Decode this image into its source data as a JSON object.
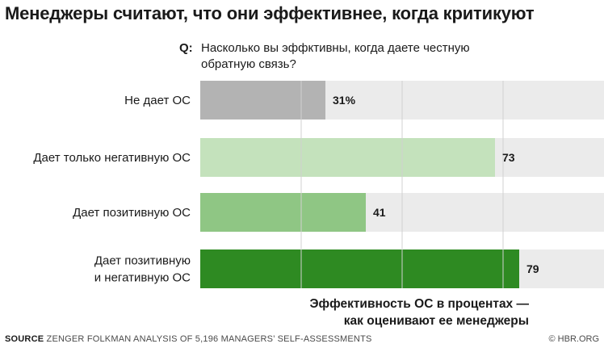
{
  "title": "Менеджеры считают, что они эффективнее, когда критикуют",
  "question": {
    "tag": "Q:",
    "lines": [
      "Насколько вы эффктивны, когда даете честную",
      "обратную связь?"
    ]
  },
  "chart_data": {
    "type": "bar",
    "orientation": "horizontal",
    "categories": [
      [
        "Не дает ОС"
      ],
      [
        "Дает только негативную ОС"
      ],
      [
        "Дает позитивную ОС"
      ],
      [
        "Дает позитивную",
        "и негативную ОС"
      ]
    ],
    "values": [
      31,
      73,
      41,
      79
    ],
    "value_labels": [
      "31%",
      "73",
      "41",
      "79"
    ],
    "xlim": [
      0,
      100
    ],
    "grid": true,
    "colors": [
      "#b3b3b3",
      "#c4e2bc",
      "#8fc684",
      "#2e8a22"
    ],
    "track_color": "#ebebeb",
    "gridline_color": "#d0d0d0",
    "xlabel": [
      "Эффективность ОС в процентах —",
      "как оценивают ее менеджеры"
    ]
  },
  "footer": {
    "source_tag": "SOURCE",
    "source_text": " ZENGER FOLKMAN ANALYSIS OF 5,196 MANAGERS’ SELF-ASSESSMENTS",
    "copyright": "© HBR.ORG"
  }
}
